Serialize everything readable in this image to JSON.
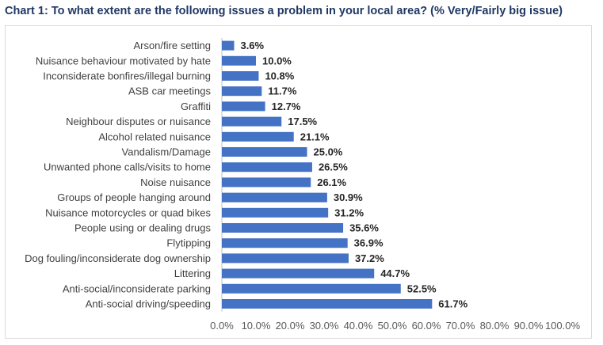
{
  "chart_data": {
    "type": "bar",
    "orientation": "horizontal",
    "title": "Chart 1: To what extent are the following issues a problem in your local area? (% Very/Fairly big issue)",
    "xlabel": "",
    "ylabel": "",
    "xlim": [
      0,
      100
    ],
    "x_ticks": [
      "0.0%",
      "10.0%",
      "20.0%",
      "30.0%",
      "40.0%",
      "50.0%",
      "60.0%",
      "70.0%",
      "80.0%",
      "90.0%",
      "100.0%"
    ],
    "grid": true,
    "bar_color": "#4472c4",
    "categories": [
      "Arson/fire setting",
      "Nuisance behaviour motivated by hate",
      "Inconsiderate bonfires/illegal burning",
      "ASB car meetings",
      "Graffiti",
      "Neighbour disputes or nuisance",
      "Alcohol related nuisance",
      "Vandalism/Damage",
      "Unwanted phone calls/visits to home",
      "Noise nuisance",
      "Groups of people hanging around",
      "Nuisance motorcycles or quad bikes",
      "People using or dealing drugs",
      "Flytipping",
      "Dog fouling/inconsiderate dog ownership",
      "Littering",
      "Anti-social/inconsiderate parking",
      "Anti-social driving/speeding"
    ],
    "values": [
      3.6,
      10.0,
      10.8,
      11.7,
      12.7,
      17.5,
      21.1,
      25.0,
      26.5,
      26.1,
      30.9,
      31.2,
      35.6,
      36.9,
      37.2,
      44.7,
      52.5,
      61.7
    ],
    "value_labels": [
      "3.6%",
      "10.0%",
      "10.8%",
      "11.7%",
      "12.7%",
      "17.5%",
      "21.1%",
      "25.0%",
      "26.5%",
      "26.1%",
      "30.9%",
      "31.2%",
      "35.6%",
      "36.9%",
      "37.2%",
      "44.7%",
      "52.5%",
      "61.7%"
    ]
  }
}
